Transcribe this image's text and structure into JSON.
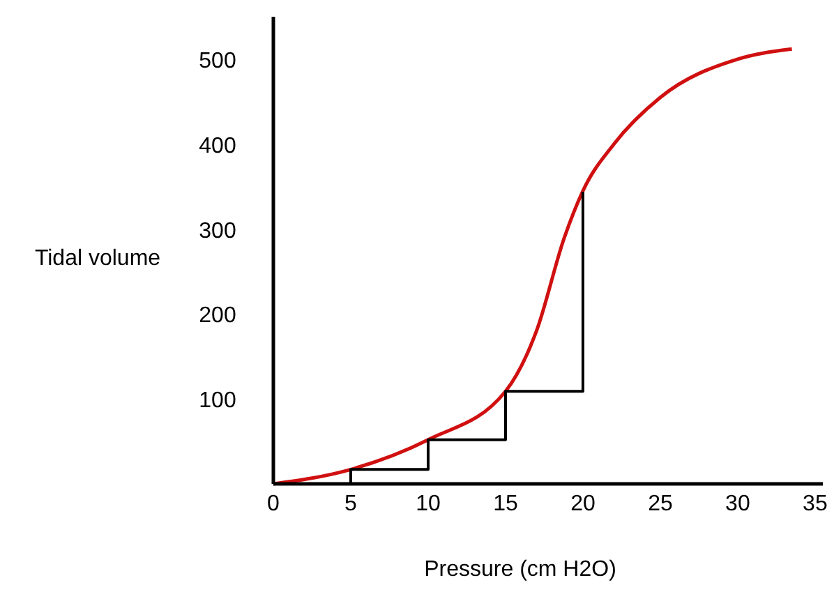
{
  "chart_data": {
    "type": "line",
    "xlabel": "Pressure (cm H2O)",
    "ylabel": "Tidal volume",
    "xlim": [
      0,
      35.5
    ],
    "ylim": [
      0,
      550
    ],
    "xticks": [
      0,
      5,
      10,
      15,
      20,
      25,
      30,
      35
    ],
    "yticks": [
      100,
      200,
      300,
      400,
      500
    ],
    "grid": false,
    "marker": "none",
    "line_style": "solid",
    "series": [
      {
        "color": "#d01010",
        "x": [
          0,
          5,
          10,
          15,
          17,
          18.8,
          20,
          22,
          25,
          30,
          33.5
        ],
        "values": [
          0,
          17,
          52,
          109,
          180,
          290,
          345,
          400,
          455,
          500,
          512
        ]
      },
      {
        "color": "#000000",
        "x": [
          5,
          5,
          10,
          10,
          15,
          15,
          20,
          20
        ],
        "values": [
          0,
          17,
          17,
          52,
          52,
          109,
          109,
          344
        ]
      }
    ]
  }
}
